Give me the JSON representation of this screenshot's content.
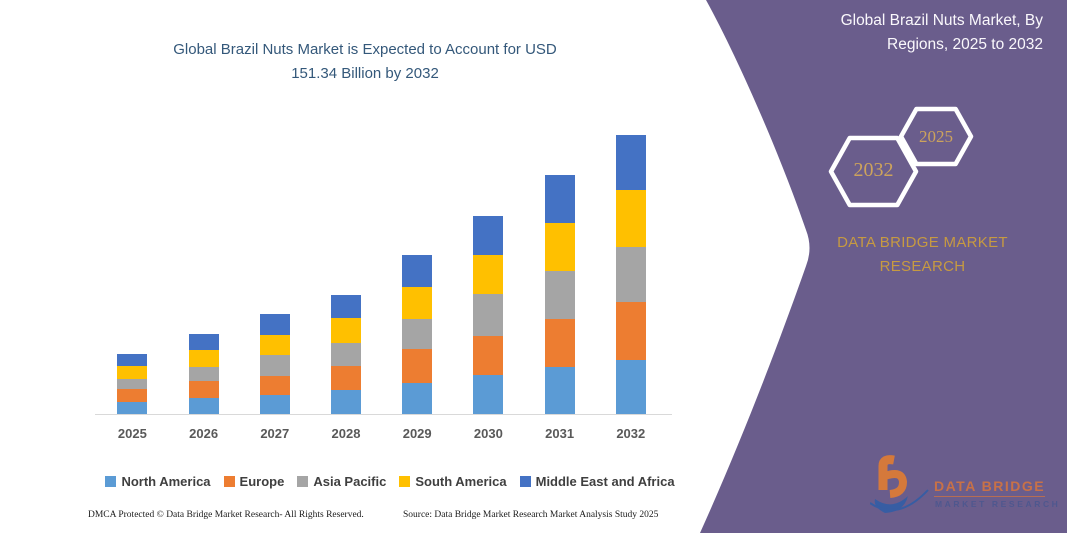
{
  "chart": {
    "title_line1": "Global Brazil Nuts Market is Expected to Account for USD",
    "title_line2": "151.34 Billion by 2032",
    "title_color": "#34587A"
  },
  "chart_data": {
    "type": "bar",
    "stacked": true,
    "title": "Global Brazil Nuts Market is Expected to Account for USD 151.34 Billion by 2032",
    "xlabel": "",
    "ylabel": "",
    "unit": "USD Billion",
    "categories": [
      "2025",
      "2026",
      "2027",
      "2028",
      "2029",
      "2030",
      "2031",
      "2032"
    ],
    "series": [
      {
        "name": "North America",
        "color": "#5B9BD5",
        "values": [
          6.7,
          8.5,
          10.5,
          13.1,
          16.7,
          20.9,
          25.4,
          29.4
        ]
      },
      {
        "name": "Europe",
        "color": "#ED7D31",
        "values": [
          6.7,
          9.6,
          10.3,
          12.7,
          18.7,
          21.2,
          26.3,
          31.4
        ]
      },
      {
        "name": "Asia Pacific",
        "color": "#A5A5A5",
        "values": [
          5.8,
          7.3,
          11.4,
          12.9,
          16.3,
          23.2,
          26.0,
          29.9
        ]
      },
      {
        "name": "South America",
        "color": "#FFC000",
        "values": [
          6.9,
          9.1,
          10.7,
          13.4,
          17.3,
          20.9,
          25.8,
          30.5
        ]
      },
      {
        "name": "Middle East and Africa",
        "color": "#4472C4",
        "values": [
          6.5,
          8.7,
          11.1,
          12.4,
          17.0,
          20.9,
          25.8,
          30.1
        ]
      }
    ],
    "estimated_totals_usd_billion": [
      32.6,
      43.2,
      54.0,
      64.5,
      86.0,
      107.1,
      129.3,
      151.34
    ],
    "ylim": [
      0,
      160
    ],
    "gridlines": false,
    "legend_position": "bottom"
  },
  "panel": {
    "heading_line1": "Global Brazil Nuts Market, By",
    "heading_line2": "Regions, 2025 to 2032",
    "hexagon_back_year": "2032",
    "hexagon_front_year": "2025",
    "brand_line1": "DATA BRIDGE MARKET",
    "brand_line2": "RESEARCH",
    "bg_color": "#6A5D8C",
    "accent_gold": "#C79A41"
  },
  "footer": {
    "dmca": "DMCA Protected © Data Bridge Market Research- All Rights Reserved.",
    "source": "Source: Data Bridge Market Research Market Analysis Study 2025"
  },
  "logo": {
    "brand": "DATA BRIDGE",
    "sub": "MARKET RESEARCH"
  }
}
